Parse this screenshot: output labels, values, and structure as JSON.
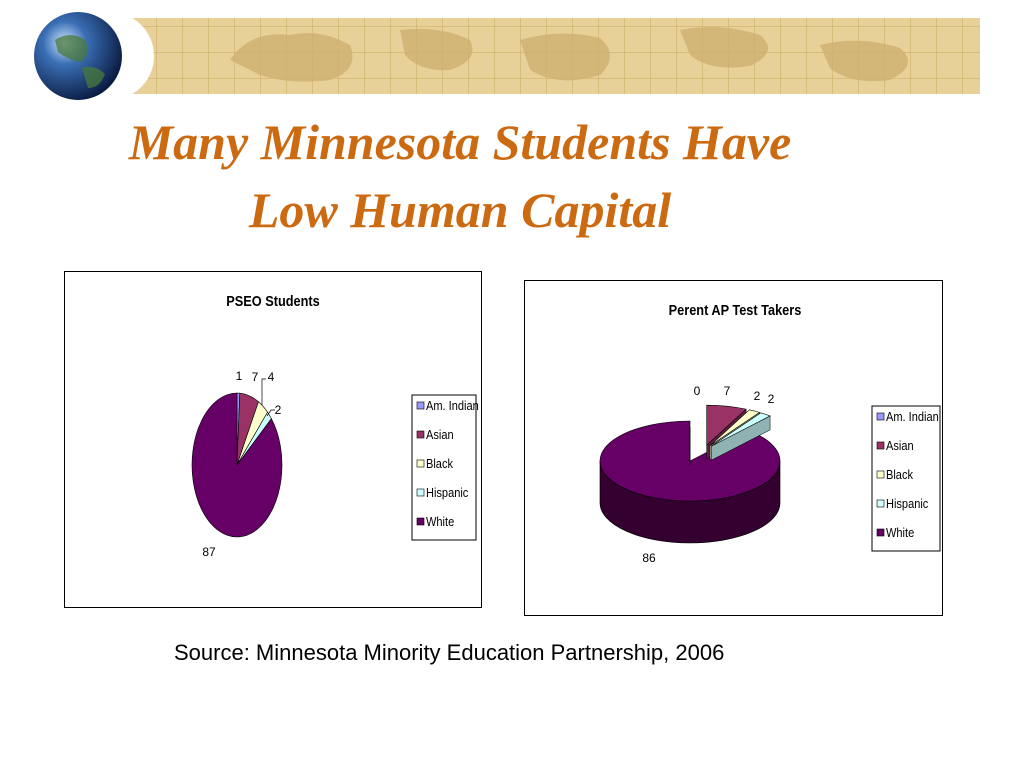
{
  "slide": {
    "title_line1": "Many Minnesota Students Have",
    "title_line2": "Low Human Capital",
    "source": "Source: Minnesota Minority Education Partnership, 2006"
  },
  "colors": {
    "title": "#cc6a12",
    "am_indian": "#9999ff",
    "asian": "#993366",
    "black": "#ffffcc",
    "hispanic": "#ccffff",
    "white": "#660066"
  },
  "icons": {
    "globe": "globe-icon",
    "banner": "world-map-banner"
  },
  "chart_data": [
    {
      "type": "pie",
      "title": "PSEO Students",
      "categories": [
        "Am. Indian",
        "Asian",
        "Black",
        "Hispanic",
        "White"
      ],
      "values": [
        1,
        7,
        4,
        2,
        87
      ],
      "legend": "right"
    },
    {
      "type": "pie",
      "title": "Perent AP Test Takers",
      "categories": [
        "Am. Indian",
        "Asian",
        "Black",
        "Hispanic",
        "White"
      ],
      "values": [
        0,
        7,
        2,
        2,
        86
      ],
      "legend": "right",
      "style": "3d-exploded"
    }
  ]
}
